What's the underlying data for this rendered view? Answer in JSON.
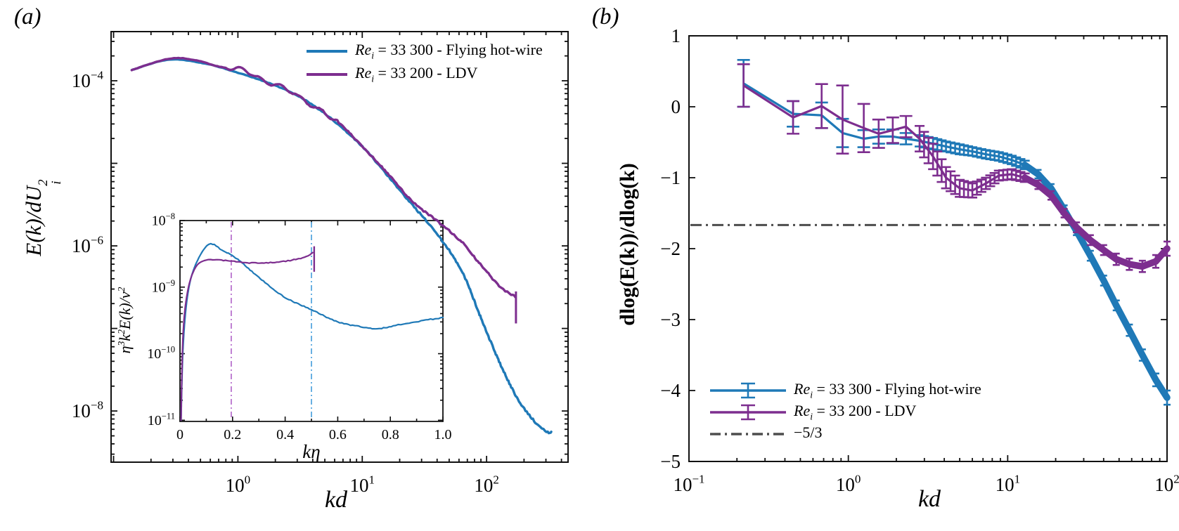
{
  "figure": {
    "background": "#ffffff",
    "panel_a": {
      "label": "(a)",
      "ylabel_parts": {
        "main": "E(k)/dU",
        "sup": "2",
        "sub": "i"
      },
      "legend": [
        {
          "css": "color:#1F79B7",
          "re": "Re",
          "sub": "i",
          "rest": " = 33 300 - Flying hot-wire"
        },
        {
          "css": "color:#7D2E8F",
          "re": "Re",
          "sub": "i",
          "rest": " = 33 200 - LDV"
        }
      ],
      "inset": {
        "xlabel_k": "k",
        "xlabel_eta": "η",
        "ylabel_segments": [
          {
            "t": "η"
          },
          {
            "t": "3",
            "s": "sup"
          },
          {
            "t": "k"
          },
          {
            "t": "2",
            "s": "sup"
          },
          {
            "t": "E(k)/ν"
          },
          {
            "t": "2",
            "s": "sup"
          }
        ]
      }
    },
    "panel_b": {
      "label": "(b)",
      "legend": [
        {
          "css": "color:#1F79B7",
          "type": "errorbar",
          "re": "Re",
          "sub": "i",
          "rest": " = 33 300 - Flying hot-wire"
        },
        {
          "css": "color:#7D2E8F",
          "type": "errorbar",
          "re": "Re",
          "sub": "i",
          "rest": " = 33 200 - LDV"
        },
        {
          "css": "color:#4D4D4D",
          "type": "dashdot",
          "re": "",
          "sub": "",
          "rest": "−5/3"
        }
      ]
    }
  },
  "chart_data": [
    {
      "id": "panel-a-main",
      "type": "line",
      "xscale": "log",
      "yscale": "log",
      "xlim": [
        0.0955,
        452
      ],
      "ylim": [
        2.4e-09,
        0.000394
      ],
      "xlabel": "kd",
      "ylabel": "E(k)/dU_i^2",
      "grid": false,
      "legend_position": "top-right",
      "xticks": [
        {
          "v": 0.1
        },
        {
          "v": 1,
          "b": "10",
          "e": "0"
        },
        {
          "v": 10,
          "b": "10",
          "e": "1"
        },
        {
          "v": 100,
          "b": "10",
          "e": "2"
        }
      ],
      "yticks": [
        {
          "v": 0.0001,
          "b": "10",
          "e": "−4"
        },
        {
          "v": 1e-05
        },
        {
          "v": 1e-06,
          "b": "10",
          "e": "−6"
        },
        {
          "v": 1e-07
        },
        {
          "v": 1e-08,
          "b": "10",
          "e": "−8"
        }
      ],
      "series": [
        {
          "name": "Re_i = 33 300 - Flying hot-wire",
          "color": "#1F79B7",
          "x": [
            0.14,
            0.28,
            0.56,
            1.0,
            1.8,
            3.2,
            5.6,
            10,
            16,
            25,
            40,
            63,
            89,
            126,
            178,
            251,
            316,
            331
          ],
          "y": [
            0.000135,
            0.00018,
            0.00016,
            0.000125,
            9.3e-05,
            6.3e-05,
            3.5e-05,
            1.6e-05,
            7.1e-06,
            3.2e-06,
            1.4e-06,
            5e-07,
            1.4e-07,
            4e-08,
            1.4e-08,
            7.1e-09,
            5.4e-09,
            5.6e-09
          ]
        },
        {
          "name": "Re_i = 33 200 - LDV",
          "color": "#7D2E8F",
          "x": [
            0.14,
            0.28,
            0.45,
            0.71,
            1.12,
            1.6,
            2.5,
            3.5,
            6.3,
            10,
            16,
            25,
            40,
            63,
            89,
            126,
            170
          ],
          "y": [
            0.000135,
            0.000185,
            0.000178,
            0.000148,
            0.000135,
            0.0001,
            7.9e-05,
            5.6e-05,
            3.2e-05,
            1.6e-05,
            7.6e-06,
            3.5e-06,
            2e-06,
            1.12e-06,
            6e-07,
            3.3e-07,
            2.4e-07
          ],
          "end_drop_to": 1.15e-07
        }
      ]
    },
    {
      "id": "panel-a-inset",
      "type": "line",
      "xscale": "linear",
      "yscale": "log",
      "xlim": [
        0,
        1.0
      ],
      "ylim": [
        9.6e-12,
        1e-08
      ],
      "xlabel": "kη",
      "ylabel": "η^3k^2E(k)/ν^2",
      "grid": false,
      "xticks": [
        {
          "v": 0,
          "l": "0"
        },
        {
          "v": 0.2,
          "l": "0.2"
        },
        {
          "v": 0.4,
          "l": "0.4"
        },
        {
          "v": 0.6,
          "l": "0.6"
        },
        {
          "v": 0.8,
          "l": "0.8"
        },
        {
          "v": 1.0,
          "l": "1.0"
        }
      ],
      "yticks": [
        {
          "v": 1e-08,
          "b": "10",
          "e": "−8"
        },
        {
          "v": 1e-09,
          "b": "10",
          "e": "−9"
        },
        {
          "v": 1e-10,
          "b": "10",
          "e": "−10"
        },
        {
          "v": 1e-11,
          "b": "10",
          "e": "−11"
        }
      ],
      "vlines": [
        {
          "x": 0.195,
          "color": "#B873CE",
          "style": "dashdot"
        },
        {
          "x": 0.5,
          "color": "#58A8DF",
          "style": "dashdot"
        }
      ],
      "series": [
        {
          "name": "Re_i = 33 300 - Flying hot-wire",
          "color": "#1F79B7",
          "x": [
            0.004,
            0.012,
            0.03,
            0.06,
            0.11,
            0.16,
            0.22,
            0.3,
            0.4,
            0.5,
            0.6,
            0.7,
            0.76,
            0.85,
            1.0
          ],
          "y": [
            1e-11,
            1.3e-10,
            8e-10,
            2.2e-09,
            4.4e-09,
            3.6e-09,
            2.6e-09,
            1.4e-09,
            7e-10,
            4.6e-10,
            3e-10,
            2.5e-10,
            2.4e-10,
            2.8e-10,
            3.5e-10
          ]
        },
        {
          "name": "Re_i = 33 200 - LDV",
          "color": "#7D2E8F",
          "x": [
            0.004,
            0.012,
            0.03,
            0.06,
            0.1,
            0.15,
            0.2,
            0.28,
            0.36,
            0.44,
            0.48,
            0.505
          ],
          "y": [
            1e-11,
            2e-10,
            9e-10,
            2e-09,
            2.55e-09,
            2.55e-09,
            2.45e-09,
            2.3e-09,
            2.35e-09,
            2.6e-09,
            2.9e-09,
            3.3e-09
          ],
          "end_drop_to": 1.7e-09
        }
      ]
    },
    {
      "id": "panel-b",
      "type": "line-errorbar",
      "xscale": "log",
      "yscale": "linear",
      "xlim": [
        0.1,
        100
      ],
      "ylim": [
        -5,
        1
      ],
      "xlabel": "kd",
      "ylabel": "dlog(E(k))/dlog(k)",
      "grid": false,
      "legend_position": "bottom-left",
      "xticks": [
        {
          "v": 0.1,
          "b": "10",
          "e": "−1"
        },
        {
          "v": 1,
          "b": "10",
          "e": "0"
        },
        {
          "v": 10,
          "b": "10",
          "e": "1"
        },
        {
          "v": 100,
          "b": "10",
          "e": "2"
        }
      ],
      "yticks": [
        {
          "v": 1,
          "l": "1"
        },
        {
          "v": 0,
          "l": "0"
        },
        {
          "v": -1,
          "l": "−1"
        },
        {
          "v": -2,
          "l": "−2"
        },
        {
          "v": -3,
          "l": "−3"
        },
        {
          "v": -4,
          "l": "−4"
        },
        {
          "v": -5,
          "l": "−5"
        }
      ],
      "hlines": [
        {
          "y": -1.6667,
          "label": "−5/3",
          "color": "#4D4D4D",
          "style": "dashdot"
        }
      ],
      "series": [
        {
          "name": "Re_i = 33 300 - Flying hot-wire",
          "color": "#1F79B7",
          "k": [
            0.22,
            0.45,
            0.68,
            0.92,
            1.25,
            1.55,
            1.9,
            2.3,
            2.8,
            3.4,
            4.1,
            5.0,
            6.0,
            7.3,
            8.8,
            10.6,
            12.8,
            15.5,
            18.7,
            22.6,
            27,
            33,
            40,
            48,
            58,
            70,
            85,
            100
          ],
          "v": [
            0.33,
            -0.1,
            -0.12,
            -0.37,
            -0.45,
            -0.42,
            -0.42,
            -0.45,
            -0.48,
            -0.52,
            -0.56,
            -0.6,
            -0.63,
            -0.67,
            -0.7,
            -0.75,
            -0.82,
            -0.95,
            -1.15,
            -1.45,
            -1.75,
            -2.1,
            -2.45,
            -2.8,
            -3.15,
            -3.5,
            -3.85,
            -4.1
          ],
          "err": [
            0.33,
            0.18,
            0.18,
            0.2,
            0.12,
            0.1,
            0.1,
            0.08,
            0.08,
            0.08,
            0.07,
            0.07,
            0.06,
            0.06,
            0.06,
            0.06,
            0.06,
            0.06,
            0.06,
            0.06,
            0.06,
            0.07,
            0.07,
            0.07,
            0.08,
            0.08,
            0.09,
            0.1
          ]
        },
        {
          "name": "Re_i = 33 200 - LDV",
          "color": "#7D2E8F",
          "k": [
            0.22,
            0.45,
            0.68,
            0.92,
            1.25,
            1.55,
            1.9,
            2.3,
            2.8,
            3.4,
            4.1,
            5.0,
            6.0,
            7.3,
            8.8,
            10.6,
            12.8,
            15.5,
            18.7,
            22.6,
            27,
            33,
            40,
            48,
            58,
            70,
            85,
            100
          ],
          "v": [
            0.3,
            -0.15,
            0.01,
            -0.18,
            -0.3,
            -0.38,
            -0.33,
            -0.28,
            -0.45,
            -0.7,
            -1.0,
            -1.15,
            -1.18,
            -1.08,
            -0.97,
            -0.95,
            -1.0,
            -1.1,
            -1.25,
            -1.5,
            -1.7,
            -1.88,
            -2.02,
            -2.15,
            -2.22,
            -2.25,
            -2.18,
            -2.0
          ],
          "err": [
            0.3,
            0.23,
            0.31,
            0.48,
            0.34,
            0.2,
            0.18,
            0.15,
            0.18,
            0.18,
            0.15,
            0.12,
            0.1,
            0.08,
            0.07,
            0.07,
            0.06,
            0.06,
            0.06,
            0.06,
            0.07,
            0.07,
            0.07,
            0.08,
            0.08,
            0.08,
            0.09,
            0.1
          ]
        }
      ]
    }
  ]
}
